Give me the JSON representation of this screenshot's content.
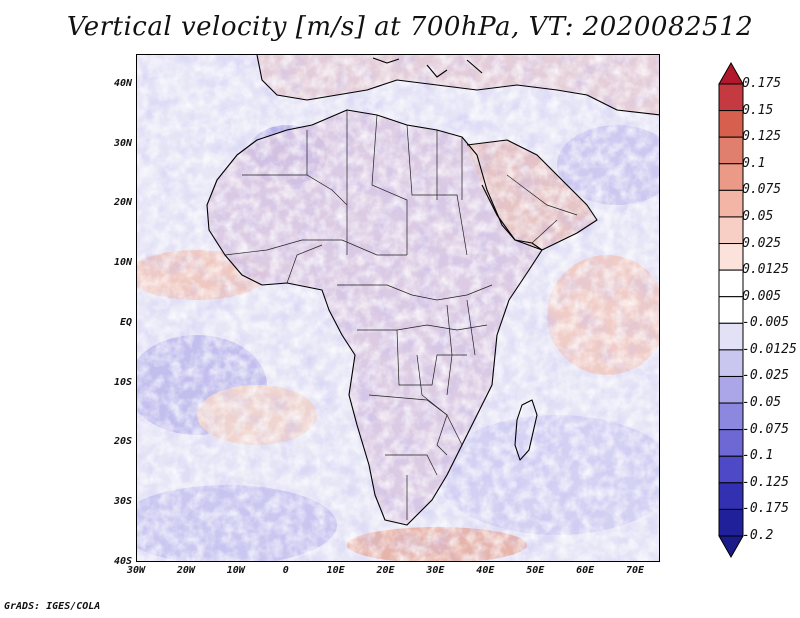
{
  "title": "Vertical velocity [m/s] at 700hPa, VT: 2020082512",
  "credit": "GrADS: IGES/COLA",
  "map": {
    "lat_labels": [
      "40N",
      "30N",
      "20N",
      "10N",
      "EQ",
      "10S",
      "20S",
      "30S",
      "40S"
    ],
    "lon_labels": [
      "30W",
      "20W",
      "10W",
      "0",
      "10E",
      "20E",
      "30E",
      "40E",
      "50E",
      "60E",
      "70E"
    ],
    "lat_range": [
      -40,
      45
    ],
    "lon_range": [
      -30,
      75
    ]
  },
  "colorbar": {
    "levels": [
      "0.175",
      "0.15",
      "0.125",
      "0.1",
      "0.075",
      "0.05",
      "0.025",
      "0.0125",
      "0.005",
      "-0.005",
      "-0.0125",
      "-0.025",
      "-0.05",
      "-0.075",
      "-0.1",
      "-0.125",
      "-0.175",
      "-0.2"
    ],
    "colors": [
      "#b2182b",
      "#c53a40",
      "#d6604d",
      "#e07f6e",
      "#eb9a88",
      "#f3b6a6",
      "#f8cfc4",
      "#fbe2da",
      "#ffffff",
      "#ffffff",
      "#e3e1f6",
      "#c9c6f0",
      "#aaa6e8",
      "#8c87df",
      "#6d68d4",
      "#4e49c6",
      "#3430b2",
      "#20209a",
      "#1a1a8a"
    ]
  }
}
